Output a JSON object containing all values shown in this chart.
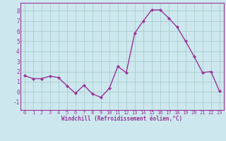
{
  "x": [
    0,
    1,
    2,
    3,
    4,
    5,
    6,
    7,
    8,
    9,
    10,
    11,
    12,
    13,
    14,
    15,
    16,
    17,
    18,
    19,
    20,
    21,
    22,
    23
  ],
  "y": [
    1.6,
    1.3,
    1.3,
    1.55,
    1.4,
    0.6,
    -0.15,
    0.65,
    -0.2,
    -0.55,
    0.35,
    2.5,
    1.9,
    5.8,
    7.0,
    8.1,
    8.1,
    7.3,
    6.4,
    5.0,
    3.5,
    1.9,
    2.0,
    0.05
  ],
  "line_color": "#993399",
  "marker": "D",
  "marker_size": 2.2,
  "background_color": "#cce8ee",
  "grid_color": "#aacccc",
  "xlabel": "Windchill (Refroidissement éolien,°C)",
  "xlabel_color": "#993399",
  "ylim": [
    -1.8,
    8.8
  ],
  "xlim": [
    -0.5,
    23.5
  ],
  "yticks": [
    -1,
    0,
    1,
    2,
    3,
    4,
    5,
    6,
    7,
    8
  ],
  "xticks": [
    0,
    1,
    2,
    3,
    4,
    5,
    6,
    7,
    8,
    9,
    10,
    11,
    12,
    13,
    14,
    15,
    16,
    17,
    18,
    19,
    20,
    21,
    22,
    23
  ],
  "tick_color": "#993399",
  "spine_color": "#993399",
  "line_width": 1.0
}
